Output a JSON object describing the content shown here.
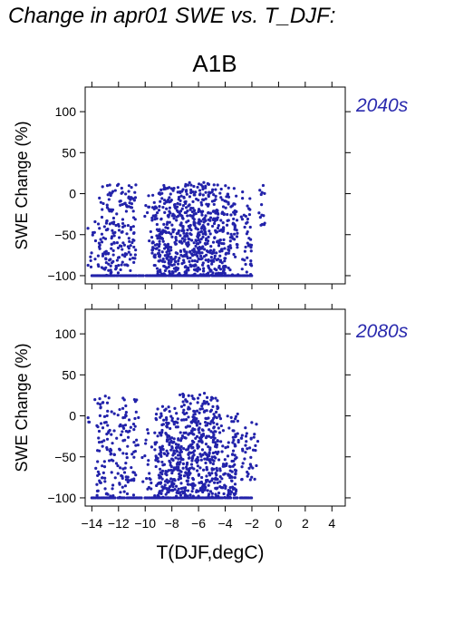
{
  "title": "Change in apr01 SWE vs. T_DJF:",
  "scenario": "A1B",
  "xlabel": "T(DJF,degC)",
  "ylabel": "SWE Change (%)",
  "colors": {
    "points": "#2222aa",
    "period_label": "#2a2aae"
  },
  "chart_data": [
    {
      "type": "scatter",
      "period": "2040s",
      "ylabel": "SWE Change (%)",
      "xlim": [
        -14.5,
        5
      ],
      "ylim": [
        -110,
        130
      ],
      "yticks": [
        100,
        50,
        0,
        -50,
        -100
      ],
      "ytick_labels": [
        "100",
        "50",
        "0",
        "−50",
        "−100"
      ],
      "xticks": [
        -14,
        -12,
        -10,
        -8,
        -6,
        -4,
        -2,
        0,
        2,
        4
      ],
      "xtick_labels": [],
      "clusters": [
        {
          "x": [
            -14.3,
            -13.9
          ],
          "y": [
            -100,
            -40
          ],
          "n": 8
        },
        {
          "x": [
            -13.8,
            -10.7
          ],
          "y": [
            -100,
            12
          ],
          "n": 190
        },
        {
          "x": [
            -10.2,
            -9.5
          ],
          "y": [
            -60,
            0
          ],
          "n": 8
        },
        {
          "x": [
            -9.5,
            -7.5
          ],
          "y": [
            -100,
            12
          ],
          "n": 230
        },
        {
          "x": [
            -7.5,
            -4.5
          ],
          "y": [
            -100,
            14
          ],
          "n": 380
        },
        {
          "x": [
            -4.5,
            -3.0
          ],
          "y": [
            -100,
            10
          ],
          "n": 120
        },
        {
          "x": [
            -2.8,
            -2.0
          ],
          "y": [
            -100,
            10
          ],
          "n": 40
        },
        {
          "x": [
            -1.5,
            -1.0
          ],
          "y": [
            -40,
            12
          ],
          "n": 14
        }
      ],
      "floor_value": -100,
      "floor_range": [
        -14.0,
        -2.0
      ]
    },
    {
      "type": "scatter",
      "period": "2080s",
      "ylabel": "SWE Change (%)",
      "xlim": [
        -14.5,
        5
      ],
      "ylim": [
        -110,
        130
      ],
      "yticks": [
        100,
        50,
        0,
        -50,
        -100
      ],
      "ytick_labels": [
        "100",
        "50",
        "0",
        "−50",
        "−100"
      ],
      "xticks": [
        -14,
        -12,
        -10,
        -8,
        -6,
        -4,
        -2,
        0,
        2,
        4
      ],
      "xtick_labels": [
        "−14",
        "−12",
        "−10",
        "−8",
        "−6",
        "−4",
        "−2",
        "0",
        "2",
        "4"
      ],
      "clusters": [
        {
          "x": [
            -14.5,
            -14.1
          ],
          "y": [
            -10,
            0
          ],
          "n": 3
        },
        {
          "x": [
            -13.8,
            -10.5
          ],
          "y": [
            -100,
            25
          ],
          "n": 170
        },
        {
          "x": [
            -10.3,
            -9.3
          ],
          "y": [
            -90,
            -10
          ],
          "n": 18
        },
        {
          "x": [
            -9.3,
            -7.5
          ],
          "y": [
            -100,
            15
          ],
          "n": 200
        },
        {
          "x": [
            -7.5,
            -4.5
          ],
          "y": [
            -100,
            28
          ],
          "n": 380
        },
        {
          "x": [
            -4.5,
            -3.0
          ],
          "y": [
            -100,
            10
          ],
          "n": 110
        },
        {
          "x": [
            -2.8,
            -1.5
          ],
          "y": [
            -80,
            -5
          ],
          "n": 40
        }
      ],
      "floor_value": -100,
      "floor_range": [
        -14.0,
        -2.0
      ]
    }
  ]
}
